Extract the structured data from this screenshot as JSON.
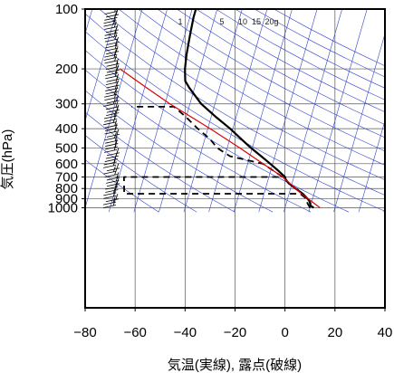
{
  "chart_data": {
    "type": "line",
    "title": "",
    "xlabel": "気温(実線), 露点(破線)",
    "ylabel": "気圧(hPa)",
    "x_scale": "skew-T (temperature lines skewed)",
    "y_scale": "log",
    "xlim": [
      -80,
      40
    ],
    "ylim": [
      1050,
      100
    ],
    "x_ticks": [
      -80,
      -60,
      -40,
      -20,
      0,
      20,
      40
    ],
    "y_ticks": [
      100,
      200,
      300,
      400,
      500,
      600,
      700,
      800,
      900,
      1000
    ],
    "mixing_ratio_labels": [
      "1",
      "5",
      "10",
      "15",
      "20g"
    ],
    "grid": true,
    "colors": {
      "temperature": "#000000",
      "dewpoint": "#000000",
      "parcel": "#dd0000",
      "isotherm_adiabat_grid": "#3344cc",
      "frame": "#000000"
    },
    "series": [
      {
        "role": "temperature",
        "style": "solid",
        "points": [
          {
            "p": 1000,
            "t": 11.5
          },
          {
            "p": 975,
            "t": 10.0
          },
          {
            "p": 950,
            "t": 9.5
          },
          {
            "p": 925,
            "t": 9.0
          },
          {
            "p": 900,
            "t": 8.0
          },
          {
            "p": 850,
            "t": 5.5
          },
          {
            "p": 800,
            "t": 2.0
          },
          {
            "p": 750,
            "t": -1.5
          },
          {
            "p": 720,
            "t": -3.0
          },
          {
            "p": 700,
            "t": -3.5
          },
          {
            "p": 650,
            "t": -7.0
          },
          {
            "p": 600,
            "t": -11.0
          },
          {
            "p": 550,
            "t": -15.5
          },
          {
            "p": 500,
            "t": -20.5
          },
          {
            "p": 450,
            "t": -25.5
          },
          {
            "p": 400,
            "t": -31.0
          },
          {
            "p": 350,
            "t": -38.0
          },
          {
            "p": 300,
            "t": -45.5
          },
          {
            "p": 250,
            "t": -52.0
          },
          {
            "p": 230,
            "t": -54.5
          },
          {
            "p": 200,
            "t": -56.0
          },
          {
            "p": 170,
            "t": -57.0
          },
          {
            "p": 150,
            "t": -57.5
          },
          {
            "p": 130,
            "t": -58.0
          },
          {
            "p": 110,
            "t": -58.5
          },
          {
            "p": 100,
            "t": -58.5
          }
        ]
      },
      {
        "role": "dewpoint",
        "style": "dashed",
        "points": [
          {
            "p": 1000,
            "t": 10.0
          },
          {
            "p": 950,
            "t": 8.5
          },
          {
            "p": 900,
            "t": 7.5
          },
          {
            "p": 850,
            "t": 4.5
          },
          {
            "p": 850,
            "t": -66.0
          },
          {
            "p": 700,
            "t": -68.0
          },
          {
            "p": 700,
            "t": -4.5
          },
          {
            "p": 650,
            "t": -9.0
          },
          {
            "p": 600,
            "t": -14.0
          },
          {
            "p": 550,
            "t": -28.0
          },
          {
            "p": 500,
            "t": -34.0
          },
          {
            "p": 450,
            "t": -38.0
          },
          {
            "p": 400,
            "t": -44.0
          },
          {
            "p": 350,
            "t": -50.0
          },
          {
            "p": 310,
            "t": -56.0
          },
          {
            "p": 310,
            "t": -73.0
          }
        ]
      },
      {
        "role": "parcel",
        "style": "solid",
        "points": [
          {
            "p": 1000,
            "t": 14.0
          },
          {
            "p": 850,
            "t": 5.0
          },
          {
            "p": 700,
            "t": -4.5
          },
          {
            "p": 500,
            "t": -25.0
          },
          {
            "p": 400,
            "t": -39.0
          },
          {
            "p": 300,
            "t": -58.0
          },
          {
            "p": 250,
            "t": -69.0
          },
          {
            "p": 200,
            "t": -82.0
          }
        ]
      }
    ],
    "wind_barbs": "vertical column of wind barbs along the left side at about -72 °C"
  }
}
